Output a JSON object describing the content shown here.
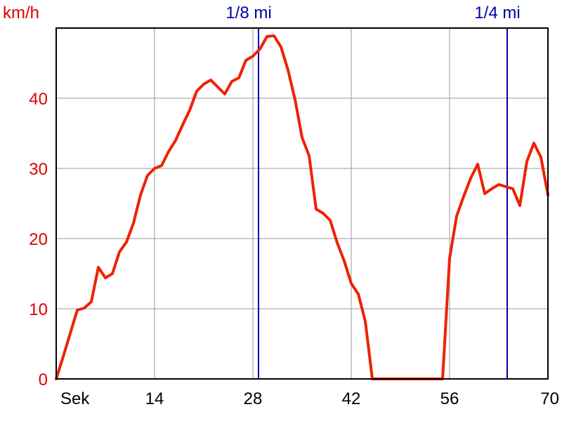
{
  "chart_data": {
    "type": "line",
    "title": "",
    "xlabel": "Sek",
    "ylabel": "km/h",
    "xlim": [
      0,
      70
    ],
    "ylim": [
      0,
      50
    ],
    "x_ticks": [
      14,
      28,
      42,
      56,
      70
    ],
    "x_tick_labels": [
      "14",
      "28",
      "42",
      "56",
      "70"
    ],
    "y_ticks": [
      0,
      10,
      20,
      30,
      40
    ],
    "y_tick_labels": [
      "0",
      "10",
      "20",
      "30",
      "40"
    ],
    "grid": true,
    "colors": {
      "series": "#ee2200",
      "y_axis_text": "#dd0000",
      "markers": "#0000aa",
      "grid": "#999999"
    },
    "markers": [
      {
        "label": "1/8 mi",
        "x": 28.8
      },
      {
        "label": "1/4 mi",
        "x": 64.2
      }
    ],
    "series": [
      {
        "points": [
          [
            0,
            0
          ],
          [
            1,
            3.2
          ],
          [
            2,
            6.5
          ],
          [
            3,
            9.8
          ],
          [
            4,
            10.1
          ],
          [
            5,
            11.0
          ],
          [
            6,
            15.9
          ],
          [
            7,
            14.4
          ],
          [
            8,
            15.0
          ],
          [
            9,
            18.1
          ],
          [
            10,
            19.5
          ],
          [
            11,
            22.2
          ],
          [
            12,
            26.2
          ],
          [
            13,
            29.0
          ],
          [
            14,
            30.0
          ],
          [
            15,
            30.4
          ],
          [
            16,
            32.4
          ],
          [
            17,
            34.0
          ],
          [
            18,
            36.2
          ],
          [
            19,
            38.3
          ],
          [
            20,
            41.0
          ],
          [
            21,
            42.0
          ],
          [
            22,
            42.6
          ],
          [
            23,
            41.6
          ],
          [
            24,
            40.6
          ],
          [
            25,
            42.4
          ],
          [
            26,
            42.9
          ],
          [
            27,
            45.4
          ],
          [
            28,
            46.0
          ],
          [
            29,
            47.0
          ],
          [
            30,
            48.8
          ],
          [
            31,
            48.9
          ],
          [
            32,
            47.3
          ],
          [
            33,
            44.0
          ],
          [
            34,
            39.8
          ],
          [
            35,
            34.4
          ],
          [
            36,
            31.8
          ],
          [
            37,
            24.2
          ],
          [
            38,
            23.6
          ],
          [
            39,
            22.6
          ],
          [
            40,
            19.4
          ],
          [
            41,
            16.8
          ],
          [
            42,
            13.6
          ],
          [
            43,
            12.1
          ],
          [
            44,
            8.2
          ],
          [
            45,
            0
          ],
          [
            46,
            0
          ],
          [
            48,
            0
          ],
          [
            50,
            0
          ],
          [
            52,
            0
          ],
          [
            54,
            0
          ],
          [
            55,
            0
          ],
          [
            56,
            17.2
          ],
          [
            57,
            23.2
          ],
          [
            58,
            26.0
          ],
          [
            59,
            28.6
          ],
          [
            60,
            30.6
          ],
          [
            61,
            26.4
          ],
          [
            62,
            27.1
          ],
          [
            63,
            27.7
          ],
          [
            64,
            27.4
          ],
          [
            65,
            27.1
          ],
          [
            66,
            24.7
          ],
          [
            67,
            31.0
          ],
          [
            68,
            33.6
          ],
          [
            69,
            31.6
          ],
          [
            70,
            26.2
          ]
        ]
      }
    ]
  }
}
